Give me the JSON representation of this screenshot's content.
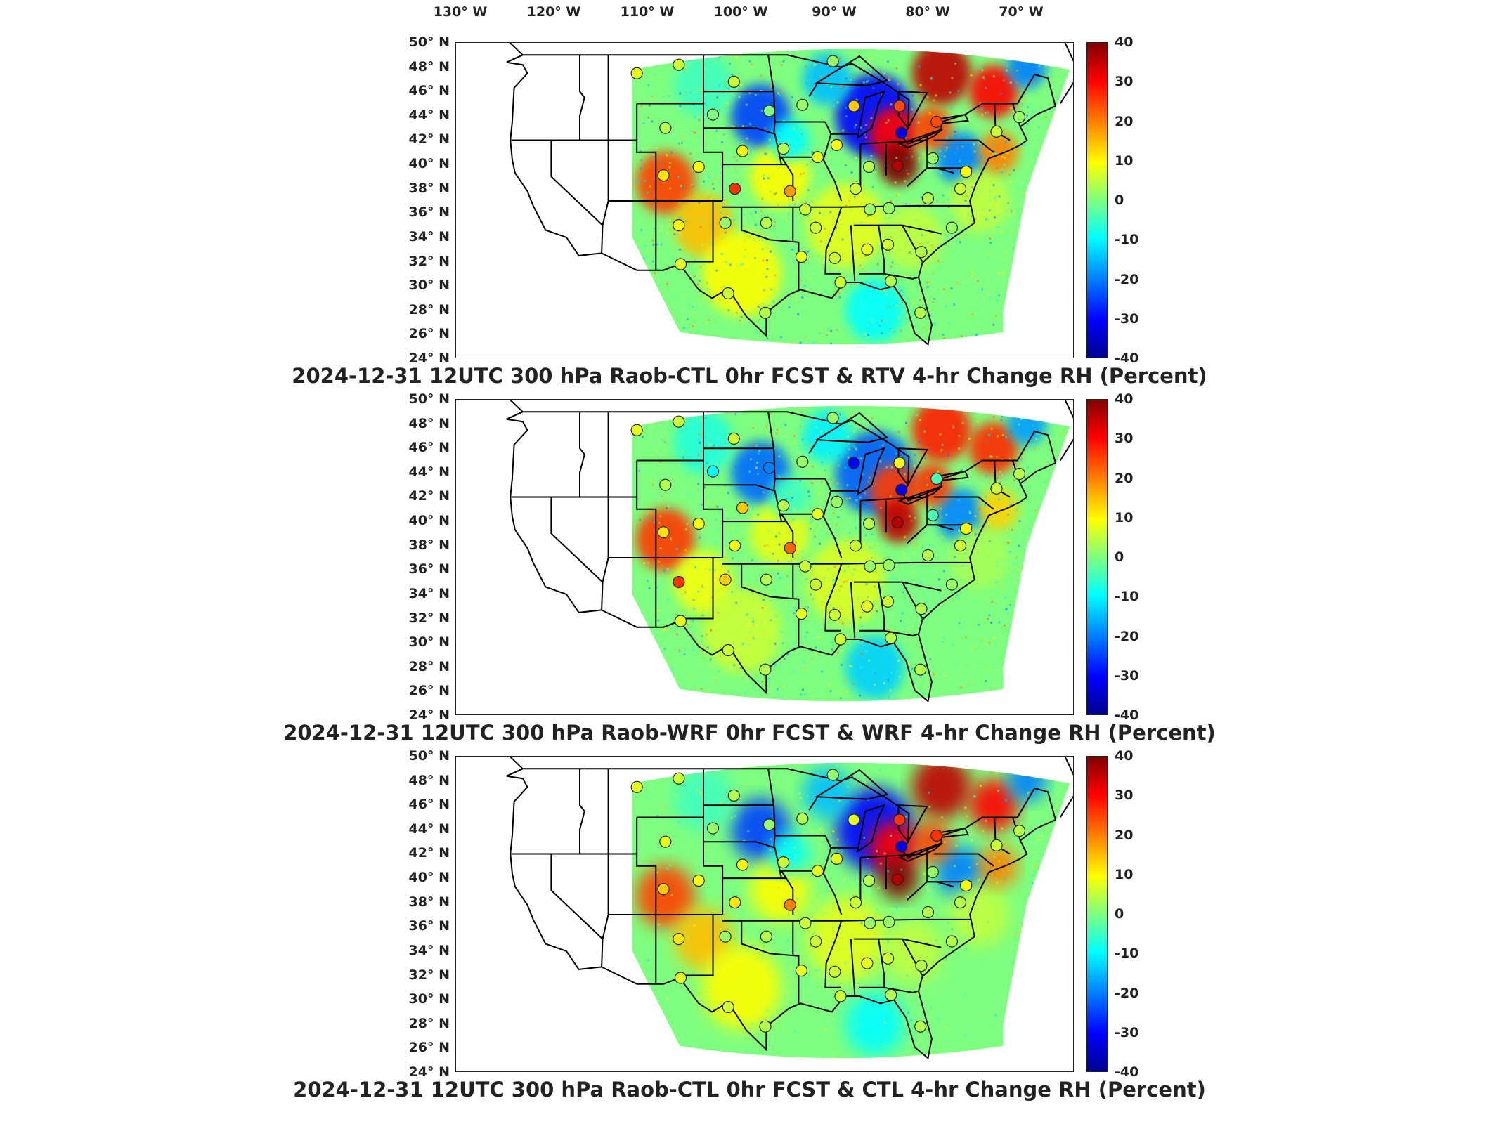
{
  "longitude_labels": [
    "130° W",
    "120° W",
    "110° W",
    "100° W",
    "90° W",
    "80° W",
    "70° W"
  ],
  "latitude_labels": [
    "50° N",
    "48° N",
    "46° N",
    "44° N",
    "42° N",
    "40° N",
    "38° N",
    "36° N",
    "34° N",
    "32° N",
    "30° N",
    "28° N",
    "26° N",
    "24° N"
  ],
  "colorbar_labels": [
    "40",
    "30",
    "20",
    "10",
    "0",
    "-10",
    "-20",
    "-30",
    "-40"
  ],
  "panels": [
    {
      "title": "2024-12-31 12UTC 300 hPa Raob-CTL 0hr FCST & RTV 4-hr Change RH (Percent)"
    },
    {
      "title": "2024-12-31 12UTC 300 hPa Raob-WRF 0hr FCST & WRF 4-hr Change RH (Percent)"
    },
    {
      "title": "2024-12-31 12UTC 300 hPa Raob-CTL 0hr FCST & CTL 4-hr Change RH (Percent)"
    }
  ],
  "colors": {
    "max": "#800000",
    "zero": "#7fff7f",
    "min": "#00008f",
    "border": "#000000"
  },
  "stations": [
    {
      "lon": -111.0,
      "lat": 47.5,
      "v": [
        8,
        8,
        8
      ]
    },
    {
      "lon": -106.6,
      "lat": 48.2,
      "v": [
        6,
        6,
        6
      ]
    },
    {
      "lon": -100.8,
      "lat": 46.8,
      "v": [
        6,
        6,
        4
      ]
    },
    {
      "lon": -90.4,
      "lat": 48.5,
      "v": [
        2,
        2,
        2
      ]
    },
    {
      "lon": -97.1,
      "lat": 44.4,
      "v": [
        0,
        -20,
        2
      ]
    },
    {
      "lon": -103.0,
      "lat": 44.1,
      "v": [
        0,
        -10,
        2
      ]
    },
    {
      "lon": -108.0,
      "lat": 43.0,
      "v": [
        4,
        4,
        8
      ]
    },
    {
      "lon": -99.9,
      "lat": 41.1,
      "v": [
        10,
        14,
        10
      ]
    },
    {
      "lon": -95.6,
      "lat": 41.3,
      "v": [
        4,
        4,
        6
      ]
    },
    {
      "lon": -93.6,
      "lat": 44.9,
      "v": [
        2,
        2,
        4
      ]
    },
    {
      "lon": -88.2,
      "lat": 44.8,
      "v": [
        14,
        -30,
        8
      ]
    },
    {
      "lon": -83.4,
      "lat": 44.8,
      "v": [
        24,
        10,
        26
      ]
    },
    {
      "lon": -83.2,
      "lat": 42.6,
      "v": [
        -32,
        -32,
        -32
      ]
    },
    {
      "lon": -83.6,
      "lat": 39.9,
      "v": [
        36,
        36,
        36
      ]
    },
    {
      "lon": -86.6,
      "lat": 39.8,
      "v": [
        4,
        4,
        4
      ]
    },
    {
      "lon": -90.0,
      "lat": 41.6,
      "v": [
        10,
        2,
        8
      ]
    },
    {
      "lon": -92.0,
      "lat": 40.6,
      "v": [
        8,
        8,
        8
      ]
    },
    {
      "lon": -88.0,
      "lat": 38.0,
      "v": [
        6,
        6,
        6
      ]
    },
    {
      "lon": -79.9,
      "lat": 40.5,
      "v": [
        2,
        -4,
        2
      ]
    },
    {
      "lon": -76.4,
      "lat": 39.4,
      "v": [
        10,
        10,
        10
      ]
    },
    {
      "lon": -77.0,
      "lat": 38.0,
      "v": [
        6,
        6,
        4
      ]
    },
    {
      "lon": -73.2,
      "lat": 42.7,
      "v": [
        6,
        6,
        6
      ]
    },
    {
      "lon": -79.5,
      "lat": 43.5,
      "v": [
        24,
        -4,
        26
      ]
    },
    {
      "lon": -70.8,
      "lat": 43.9,
      "v": [
        2,
        4,
        4
      ]
    },
    {
      "lon": -108.2,
      "lat": 39.1,
      "v": [
        12,
        12,
        14
      ]
    },
    {
      "lon": -104.5,
      "lat": 39.8,
      "v": [
        10,
        10,
        10
      ]
    },
    {
      "lon": -100.7,
      "lat": 38.0,
      "v": [
        26,
        10,
        12
      ]
    },
    {
      "lon": -94.9,
      "lat": 37.8,
      "v": [
        18,
        22,
        20
      ]
    },
    {
      "lon": -93.3,
      "lat": 36.3,
      "v": [
        6,
        6,
        6
      ]
    },
    {
      "lon": -106.6,
      "lat": 35.0,
      "v": [
        10,
        26,
        12
      ]
    },
    {
      "lon": -101.7,
      "lat": 35.2,
      "v": [
        2,
        14,
        2
      ]
    },
    {
      "lon": -97.4,
      "lat": 35.2,
      "v": [
        4,
        4,
        4
      ]
    },
    {
      "lon": -92.2,
      "lat": 34.8,
      "v": [
        6,
        6,
        6
      ]
    },
    {
      "lon": -86.5,
      "lat": 36.3,
      "v": [
        2,
        2,
        2
      ]
    },
    {
      "lon": -84.5,
      "lat": 36.4,
      "v": [
        2,
        2,
        2
      ]
    },
    {
      "lon": -80.4,
      "lat": 37.2,
      "v": [
        4,
        4,
        4
      ]
    },
    {
      "lon": -77.9,
      "lat": 34.8,
      "v": [
        2,
        2,
        4
      ]
    },
    {
      "lon": -84.6,
      "lat": 33.4,
      "v": [
        6,
        6,
        6
      ]
    },
    {
      "lon": -86.8,
      "lat": 33.0,
      "v": [
        8,
        8,
        8
      ]
    },
    {
      "lon": -81.1,
      "lat": 32.8,
      "v": [
        4,
        4,
        4
      ]
    },
    {
      "lon": -90.2,
      "lat": 32.3,
      "v": [
        6,
        6,
        6
      ]
    },
    {
      "lon": -93.7,
      "lat": 32.4,
      "v": [
        8,
        8,
        8
      ]
    },
    {
      "lon": -106.4,
      "lat": 31.8,
      "v": [
        8,
        8,
        8
      ]
    },
    {
      "lon": -101.4,
      "lat": 29.4,
      "v": [
        6,
        6,
        6
      ]
    },
    {
      "lon": -97.5,
      "lat": 27.8,
      "v": [
        4,
        4,
        4
      ]
    },
    {
      "lon": -89.6,
      "lat": 30.3,
      "v": [
        6,
        6,
        6
      ]
    },
    {
      "lon": -84.3,
      "lat": 30.4,
      "v": [
        4,
        4,
        4
      ]
    },
    {
      "lon": -81.2,
      "lat": 27.8,
      "v": [
        4,
        4,
        4
      ]
    }
  ]
}
